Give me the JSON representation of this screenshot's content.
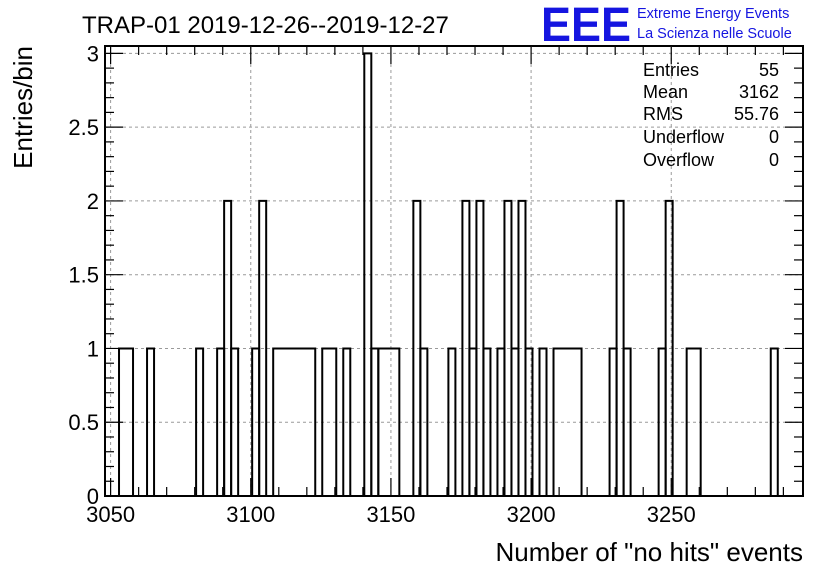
{
  "header": {
    "title": "TRAP-01 2019-12-26--2019-12-27",
    "logo_letters": "EEE",
    "logo_line1": "Extreme Energy Events",
    "logo_line2": "La Scienza nelle Scuole",
    "logo_color": "#1515e0"
  },
  "stats": {
    "rows": [
      {
        "label": "Entries",
        "value": "55"
      },
      {
        "label": "Mean",
        "value": "3162"
      },
      {
        "label": "RMS",
        "value": "55.76"
      },
      {
        "label": "Underflow",
        "value": "0"
      },
      {
        "label": "Overflow",
        "value": "0"
      }
    ]
  },
  "chart_data": {
    "type": "bar",
    "style": "step-histogram",
    "title": "TRAP-01 2019-12-26--2019-12-27",
    "xlabel": "Number of \"no hits\" events",
    "ylabel": "Entries/bin",
    "xlim": [
      3048,
      3297
    ],
    "ylim": [
      0,
      3.05
    ],
    "x_ticks": [
      3050,
      3100,
      3150,
      3200,
      3250
    ],
    "x_tick_labels": [
      "3050",
      "3100",
      "3150",
      "3200",
      "3250"
    ],
    "y_ticks": [
      0,
      0.5,
      1,
      1.5,
      2,
      2.5,
      3
    ],
    "y_tick_labels": [
      "0",
      "0.5",
      "1",
      "1.5",
      "2",
      "2.5",
      "3"
    ],
    "grid": true,
    "bin_width": 2.5,
    "bins": [
      {
        "x0": 3053.0,
        "x1": 3058.0,
        "value": 1
      },
      {
        "x0": 3063.0,
        "x1": 3065.5,
        "value": 1
      },
      {
        "x0": 3080.5,
        "x1": 3083.0,
        "value": 1
      },
      {
        "x0": 3088.0,
        "x1": 3090.5,
        "value": 1
      },
      {
        "x0": 3090.5,
        "x1": 3093.0,
        "value": 2
      },
      {
        "x0": 3093.0,
        "x1": 3095.5,
        "value": 1
      },
      {
        "x0": 3100.5,
        "x1": 3103.0,
        "value": 1
      },
      {
        "x0": 3103.0,
        "x1": 3105.5,
        "value": 2
      },
      {
        "x0": 3108.0,
        "x1": 3123.0,
        "value": 1
      },
      {
        "x0": 3125.5,
        "x1": 3130.5,
        "value": 1
      },
      {
        "x0": 3133.0,
        "x1": 3135.5,
        "value": 1
      },
      {
        "x0": 3140.5,
        "x1": 3143.0,
        "value": 3
      },
      {
        "x0": 3143.0,
        "x1": 3145.5,
        "value": 1
      },
      {
        "x0": 3145.5,
        "x1": 3153.0,
        "value": 1
      },
      {
        "x0": 3158.0,
        "x1": 3160.5,
        "value": 2
      },
      {
        "x0": 3160.5,
        "x1": 3163.0,
        "value": 1
      },
      {
        "x0": 3170.5,
        "x1": 3173.0,
        "value": 1
      },
      {
        "x0": 3175.5,
        "x1": 3178.0,
        "value": 2
      },
      {
        "x0": 3178.0,
        "x1": 3180.5,
        "value": 1
      },
      {
        "x0": 3180.5,
        "x1": 3183.0,
        "value": 2
      },
      {
        "x0": 3183.0,
        "x1": 3185.5,
        "value": 1
      },
      {
        "x0": 3188.0,
        "x1": 3190.5,
        "value": 1
      },
      {
        "x0": 3190.5,
        "x1": 3193.0,
        "value": 2
      },
      {
        "x0": 3193.0,
        "x1": 3195.5,
        "value": 1
      },
      {
        "x0": 3195.5,
        "x1": 3198.0,
        "value": 2
      },
      {
        "x0": 3198.0,
        "x1": 3200.5,
        "value": 1
      },
      {
        "x0": 3203.0,
        "x1": 3205.5,
        "value": 1
      },
      {
        "x0": 3208.0,
        "x1": 3218.0,
        "value": 1
      },
      {
        "x0": 3228.0,
        "x1": 3230.5,
        "value": 1
      },
      {
        "x0": 3230.5,
        "x1": 3233.0,
        "value": 2
      },
      {
        "x0": 3233.0,
        "x1": 3235.5,
        "value": 1
      },
      {
        "x0": 3245.5,
        "x1": 3248.0,
        "value": 1
      },
      {
        "x0": 3248.0,
        "x1": 3250.5,
        "value": 2
      },
      {
        "x0": 3255.5,
        "x1": 3260.5,
        "value": 1
      },
      {
        "x0": 3285.5,
        "x1": 3288.0,
        "value": 1
      }
    ]
  }
}
